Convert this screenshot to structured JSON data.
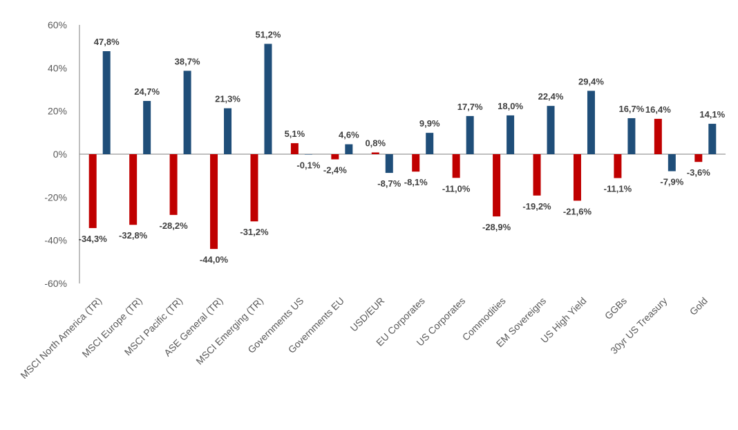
{
  "chart_data": {
    "type": "bar",
    "categories": [
      "MSCI North America (TR)",
      "MSCI Europe (TR)",
      "MSCI Pacific (TR)",
      "ASE General (TR)",
      "MSCI Emerging (TR)",
      "Governments US",
      "Governments EU",
      "USD/EUR",
      "EU Corporates",
      "US Corporates",
      "Commodities",
      "EM Sovereigns",
      "US High Yield",
      "GGBs",
      "30yr US Treasury",
      "Gold"
    ],
    "series": [
      {
        "color": "#C00000",
        "values": [
          -34.3,
          -32.8,
          -28.2,
          -44.0,
          -31.2,
          5.1,
          -2.4,
          0.8,
          -8.1,
          -11.0,
          -28.9,
          -19.2,
          -21.6,
          -11.1,
          16.4,
          -3.6
        ],
        "labels": [
          "-34,3%",
          "-32,8%",
          "-28,2%",
          "-44,0%",
          "-31,2%",
          "5,1%",
          "-2,4%",
          "0,8%",
          "-8,1%",
          "-11,0%",
          "-28,9%",
          "-19,2%",
          "-21,6%",
          "-11,1%",
          "16,4%",
          "-3,6%"
        ]
      },
      {
        "color": "#1F4E79",
        "values": [
          47.8,
          24.7,
          38.7,
          21.3,
          51.2,
          -0.1,
          4.6,
          -8.7,
          9.9,
          17.7,
          18.0,
          22.4,
          29.4,
          16.7,
          -7.9,
          14.1
        ],
        "labels": [
          "47,8%",
          "24,7%",
          "38,7%",
          "21,3%",
          "51,2%",
          "-0,1%",
          "4,6%",
          "-8,7%",
          "9,9%",
          "17,7%",
          "18,0%",
          "22,4%",
          "29,4%",
          "16,7%",
          "-7,9%",
          "14,1%"
        ]
      }
    ],
    "y_ticks": [
      "60%",
      "40%",
      "20%",
      "0%",
      "-20%",
      "-40%",
      "-60%"
    ],
    "y_tick_values": [
      60,
      40,
      20,
      0,
      -20,
      -40,
      -60
    ],
    "ylim": [
      -60,
      60
    ],
    "grid": false,
    "legend": "none"
  }
}
